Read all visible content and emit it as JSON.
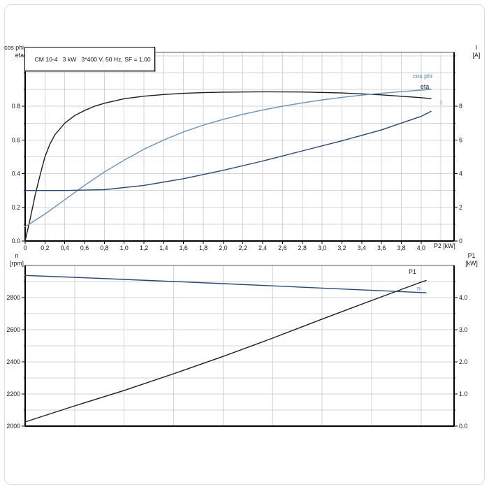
{
  "panel": {
    "background": "#ffffff",
    "frame_color": "#dcdcdc"
  },
  "colors": {
    "grid": "#cfd3d6",
    "axis": "#000000",
    "border": "#555555",
    "text": "#15151c",
    "blue_light": "#6990b8",
    "blue_dark": "#2a4672"
  },
  "chart_data": [
    {
      "type": "line",
      "title": "CM 10-4   3 kW   3*400 V, 50 Hz, SF = 1,00",
      "xlabel": "P2 [kW]",
      "ylabel_left_lines": [
        "cos phi",
        "eta"
      ],
      "ylabel_right_lines": [
        "I",
        "[A]"
      ],
      "x_axis": {
        "min": 0,
        "max": 4.333,
        "grid_step": 0.2,
        "tick_step": 0.2,
        "tick_labels": [
          "0",
          "0,2",
          "0,4",
          "0,6",
          "0,8",
          "1,0",
          "1,2",
          "1,4",
          "1,6",
          "1,8",
          "2,0",
          "2,2",
          "2,4",
          "2,6",
          "2,8",
          "3,0",
          "3,2",
          "3,4",
          "3,6",
          "3,8",
          "4,0"
        ]
      },
      "y_left": {
        "min": 0,
        "max": 1.12,
        "grid_step": 0.1,
        "label_step": 0.2,
        "tick_labels": [
          "0.0",
          "0.2",
          "0.4",
          "0.6",
          "0.8"
        ]
      },
      "y_right": {
        "min": 0,
        "max": 11.2,
        "label_step": 2,
        "tick_labels": [
          "0",
          "2",
          "4",
          "6",
          "8"
        ]
      },
      "legend_position": "end-of-curve",
      "grid": true,
      "series": [
        {
          "name": "eta",
          "label": "eta",
          "axis": "left",
          "color": "#1c1c1c",
          "x": [
            0,
            0.05,
            0.1,
            0.15,
            0.2,
            0.25,
            0.3,
            0.4,
            0.5,
            0.6,
            0.7,
            0.8,
            1.0,
            1.2,
            1.4,
            1.6,
            1.8,
            2.0,
            2.4,
            2.8,
            3.2,
            3.6,
            4.0,
            4.1
          ],
          "y": [
            0,
            0.13,
            0.27,
            0.39,
            0.5,
            0.575,
            0.63,
            0.7,
            0.745,
            0.775,
            0.8,
            0.818,
            0.845,
            0.86,
            0.87,
            0.877,
            0.881,
            0.884,
            0.886,
            0.885,
            0.879,
            0.868,
            0.851,
            0.845
          ]
        },
        {
          "name": "cos_phi",
          "label": "cos phi",
          "axis": "left",
          "color": "#6990b8",
          "x": [
            0,
            0.2,
            0.4,
            0.6,
            0.8,
            1.0,
            1.2,
            1.4,
            1.6,
            1.8,
            2.0,
            2.2,
            2.4,
            2.6,
            2.8,
            3.0,
            3.2,
            3.4,
            3.6,
            3.8,
            4.0,
            4.1
          ],
          "y": [
            0.085,
            0.16,
            0.245,
            0.33,
            0.41,
            0.48,
            0.545,
            0.6,
            0.648,
            0.688,
            0.722,
            0.752,
            0.778,
            0.8,
            0.82,
            0.838,
            0.853,
            0.866,
            0.877,
            0.887,
            0.896,
            0.9
          ]
        },
        {
          "name": "I",
          "label": "I",
          "axis": "right",
          "color": "#2a4672",
          "x": [
            0,
            0.4,
            0.8,
            1.2,
            1.6,
            2.0,
            2.4,
            2.8,
            3.2,
            3.6,
            4.0,
            4.1
          ],
          "y": [
            3.0,
            3.0,
            3.05,
            3.3,
            3.7,
            4.2,
            4.75,
            5.35,
            5.95,
            6.6,
            7.4,
            7.7
          ]
        }
      ]
    },
    {
      "type": "line",
      "title": "",
      "xlabel": "",
      "ylabel_left_lines": [
        "n",
        "[rpm]"
      ],
      "ylabel_right_lines": [
        "P1",
        "[kW]"
      ],
      "x_axis": {
        "min": 0,
        "max": 4.333,
        "grid_step": 0.5,
        "tick_step": 0.5,
        "tick_labels": []
      },
      "y_left": {
        "min": 2000,
        "max": 3000,
        "grid_step": 100,
        "label_step": 200,
        "tick_labels": [
          "2000",
          "2200",
          "2400",
          "2600",
          "2800"
        ]
      },
      "y_right": {
        "min": 0,
        "max": 5,
        "label_step": 1,
        "tick_labels": [
          "0.0",
          "1.0",
          "2.0",
          "3.0",
          "4.0"
        ]
      },
      "legend_position": "end-of-curve",
      "grid": true,
      "series": [
        {
          "name": "P1",
          "label": "P1",
          "axis": "right",
          "color": "#1c1c1c",
          "x": [
            0,
            0.5,
            1.0,
            1.5,
            2.0,
            2.5,
            3.0,
            3.5,
            4.0,
            4.05
          ],
          "y": [
            0.13,
            0.63,
            1.11,
            1.63,
            2.17,
            2.74,
            3.33,
            3.91,
            4.48,
            4.53
          ]
        },
        {
          "name": "n",
          "label": "n",
          "axis": "left",
          "color": "#2a4672",
          "x": [
            0,
            0.5,
            1.0,
            1.5,
            2.0,
            2.5,
            3.0,
            3.5,
            4.05
          ],
          "y": [
            2938,
            2926,
            2913,
            2900,
            2887,
            2873,
            2859,
            2845,
            2830
          ]
        }
      ]
    }
  ]
}
